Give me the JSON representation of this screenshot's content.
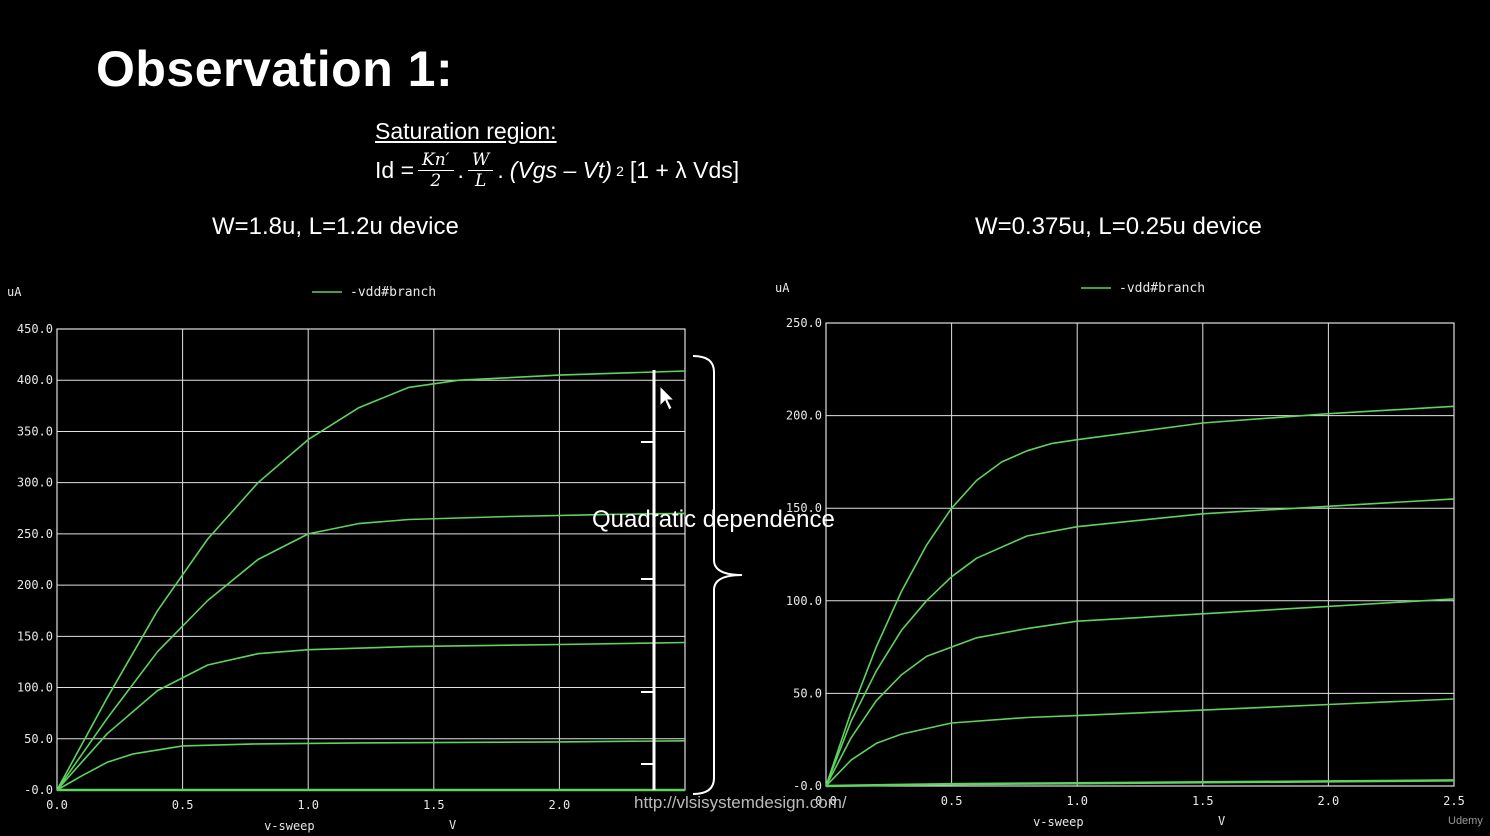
{
  "slide": {
    "title": "Observation 1:",
    "subtitle": "Saturation region:",
    "formula": {
      "lhs": "Id =",
      "frac1_num": "Kn′",
      "frac1_den": "2",
      "dot1": ".",
      "frac2_num": "W",
      "frac2_den": "L",
      "dot2": ".",
      "term": "(Vgs – Vt)",
      "exp": "2",
      "tail": "[1 + λ Vds]"
    },
    "device_left": "W=1.8u, L=1.2u device",
    "device_right": "W=0.375u, L=0.25u device",
    "annotation": "Quadratic dependence",
    "url": "http://vlsisystemdesign.com/",
    "watermark": "Udemy"
  },
  "colors": {
    "background": "#000000",
    "grid": "#e0e0e0",
    "trace": "#5fd35f",
    "text": "#ffffff"
  },
  "chart_data": [
    {
      "type": "line",
      "y_unit": "uA",
      "xlabel": "v-sweep",
      "x_unit": "V",
      "legend": "-vdd#branch",
      "legend_position": "top-center",
      "grid": true,
      "xlim": [
        0.0,
        2.5
      ],
      "ylim": [
        0.0,
        450.0
      ],
      "x_ticks": [
        "0.0",
        "0.5",
        "1.0",
        "1.5",
        "2.0"
      ],
      "y_ticks": [
        "-0.0",
        "50.0",
        "100.0",
        "150.0",
        "200.0",
        "250.0",
        "300.0",
        "350.0",
        "400.0",
        "450.0"
      ],
      "series": [
        {
          "x": [
            0,
            0.5,
            1.0,
            1.5,
            2.0,
            2.5
          ],
          "values": [
            0,
            0,
            0,
            0,
            0,
            0
          ]
        },
        {
          "x": [
            0,
            0.1,
            0.2,
            0.3,
            0.5,
            0.8,
            1.2,
            1.6,
            2.0,
            2.5
          ],
          "values": [
            0,
            14,
            27,
            35,
            43,
            45,
            46,
            46.5,
            47,
            48
          ]
        },
        {
          "x": [
            0,
            0.2,
            0.4,
            0.6,
            0.8,
            1.0,
            1.4,
            2.0,
            2.5
          ],
          "values": [
            0,
            55,
            97,
            122,
            133,
            137,
            140,
            142,
            144
          ]
        },
        {
          "x": [
            0,
            0.2,
            0.4,
            0.6,
            0.8,
            1.0,
            1.2,
            1.4,
            1.8,
            2.2,
            2.5
          ],
          "values": [
            0,
            70,
            135,
            185,
            225,
            250,
            260,
            264,
            267,
            269,
            270
          ]
        },
        {
          "x": [
            0,
            0.2,
            0.4,
            0.6,
            0.8,
            1.0,
            1.2,
            1.4,
            1.6,
            2.0,
            2.5
          ],
          "values": [
            0,
            90,
            175,
            245,
            300,
            342,
            373,
            393,
            400,
            405,
            409
          ]
        }
      ]
    },
    {
      "type": "line",
      "y_unit": "uA",
      "xlabel": "v-sweep",
      "x_unit": "V",
      "legend": "-vdd#branch",
      "legend_position": "top-center",
      "grid": true,
      "xlim": [
        0.0,
        2.5
      ],
      "ylim": [
        0.0,
        250.0
      ],
      "x_ticks": [
        "0.0",
        "0.5",
        "1.0",
        "1.5",
        "2.0",
        "2.5"
      ],
      "y_ticks": [
        "-0.0",
        "50.0",
        "100.0",
        "150.0",
        "200.0",
        "250.0"
      ],
      "series": [
        {
          "x": [
            0,
            0.5,
            1.0,
            1.5,
            2.0,
            2.5
          ],
          "values": [
            0,
            1,
            1.5,
            2,
            2.5,
            3
          ]
        },
        {
          "x": [
            0,
            0.1,
            0.2,
            0.3,
            0.5,
            0.8,
            1.0,
            1.5,
            2.0,
            2.5
          ],
          "values": [
            0,
            14,
            23,
            28,
            34,
            37,
            38,
            41,
            44,
            47
          ]
        },
        {
          "x": [
            0,
            0.1,
            0.2,
            0.3,
            0.4,
            0.6,
            0.8,
            1.0,
            1.5,
            2.0,
            2.5
          ],
          "values": [
            0,
            26,
            46,
            60,
            70,
            80,
            85,
            89,
            93,
            97,
            101
          ]
        },
        {
          "x": [
            0,
            0.1,
            0.2,
            0.3,
            0.4,
            0.5,
            0.6,
            0.8,
            1.0,
            1.5,
            2.0,
            2.5
          ],
          "values": [
            0,
            35,
            62,
            84,
            100,
            113,
            123,
            135,
            140,
            147,
            151,
            155
          ]
        },
        {
          "x": [
            0,
            0.1,
            0.2,
            0.3,
            0.4,
            0.5,
            0.6,
            0.7,
            0.8,
            0.9,
            1.0,
            1.5,
            2.0,
            2.5
          ],
          "values": [
            0,
            40,
            75,
            105,
            130,
            150,
            165,
            175,
            181,
            185,
            187,
            196,
            201,
            205
          ]
        }
      ]
    }
  ]
}
